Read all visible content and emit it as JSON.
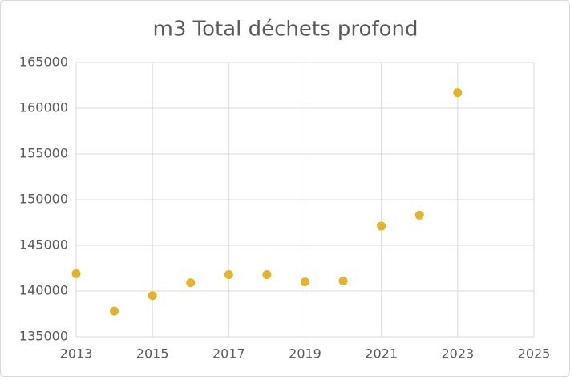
{
  "chart_data": {
    "type": "scatter",
    "title": "m3 Total déchets profond",
    "series": [
      {
        "color": "#e5b326",
        "x": [
          2013,
          2014,
          2015,
          2016,
          2017,
          2018,
          2019,
          2020,
          2021,
          2022,
          2023
        ],
        "values": [
          141900,
          137800,
          139500,
          140900,
          141800,
          141800,
          141000,
          141100,
          147100,
          148300,
          161700
        ]
      }
    ],
    "xlim": [
      2013,
      2025
    ],
    "xticks": [
      2013,
      2015,
      2017,
      2019,
      2021,
      2023,
      2025
    ],
    "ylim": [
      135000,
      165000
    ],
    "yticks": [
      135000,
      140000,
      145000,
      150000,
      155000,
      160000,
      165000
    ],
    "grid": true
  }
}
